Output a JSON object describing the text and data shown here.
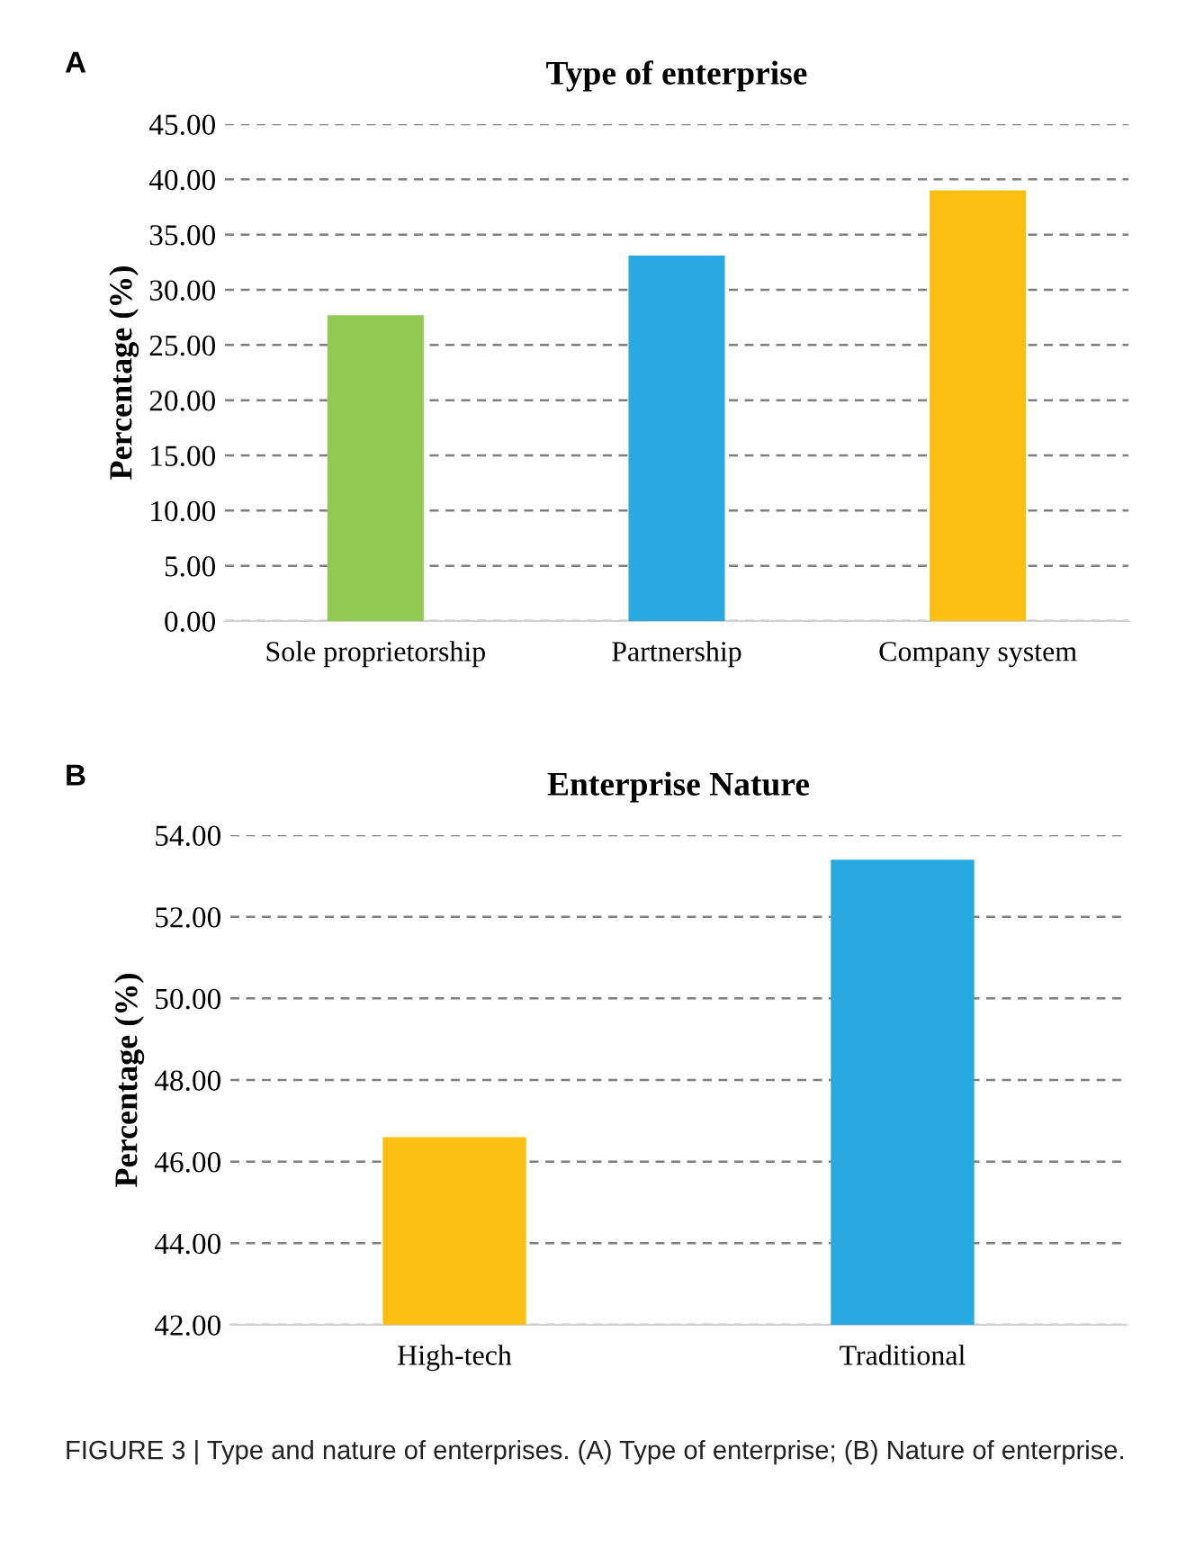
{
  "chart_data": [
    {
      "type": "bar",
      "title": "Type of enterprise",
      "ylabel": "Percentage (%)",
      "annotations": [
        "A"
      ],
      "categories": [
        "Sole proprietorship",
        "Partnership",
        "Company system"
      ],
      "values": [
        27.7,
        33.1,
        39.0
      ],
      "colors": [
        "#92c953",
        "#29a9e1",
        "#fbbf13"
      ],
      "ylim": [
        0,
        45
      ],
      "yticks": [
        {
          "value": 0,
          "label": "0.00"
        },
        {
          "value": 5,
          "label": "5.00"
        },
        {
          "value": 10,
          "label": "10.00"
        },
        {
          "value": 15,
          "label": "15.00"
        },
        {
          "value": 20,
          "label": "20.00"
        },
        {
          "value": 25,
          "label": "25.00"
        },
        {
          "value": 30,
          "label": "30.00"
        },
        {
          "value": 35,
          "label": "35.00"
        },
        {
          "value": 40,
          "label": "40.00"
        },
        {
          "value": 45,
          "label": "45.00"
        }
      ],
      "grid": "y",
      "legend": false
    },
    {
      "type": "bar",
      "title": "Enterprise Nature",
      "ylabel": "Percentage (%)",
      "annotations": [
        "B",
        "FIGURE 3 | Type and nature of enterprises. (A) Type of enterprise; (B) Nature of enterprise."
      ],
      "categories": [
        "High-tech",
        "Traditional"
      ],
      "values": [
        46.6,
        53.4
      ],
      "colors": [
        "#fbbf13",
        "#29a9e1"
      ],
      "ylim": [
        42,
        54
      ],
      "yticks": [
        {
          "value": 42,
          "label": "42.00"
        },
        {
          "value": 44,
          "label": "44.00"
        },
        {
          "value": 46,
          "label": "46.00"
        },
        {
          "value": 48,
          "label": "48.00"
        },
        {
          "value": 50,
          "label": "50.00"
        },
        {
          "value": 52,
          "label": "52.00"
        },
        {
          "value": 54,
          "label": "54.00"
        }
      ],
      "grid": "y",
      "legend": false
    }
  ]
}
